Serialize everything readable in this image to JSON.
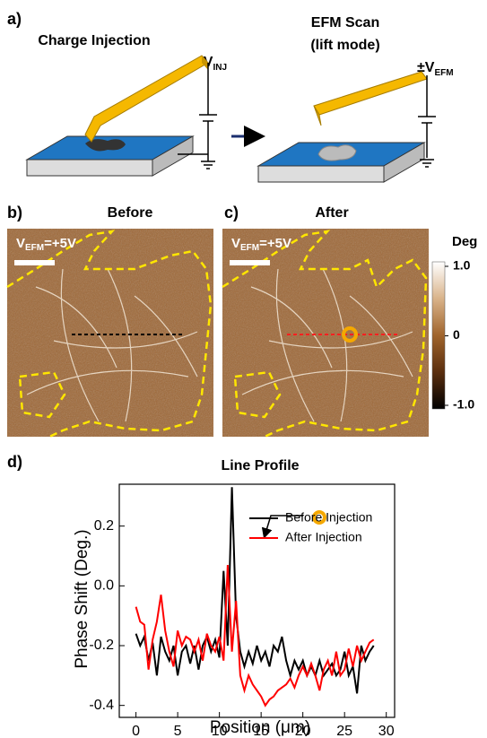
{
  "panel_a": {
    "label": "a)",
    "left_title": "Charge Injection",
    "right_title_1": "EFM Scan",
    "right_title_2": "(lift mode)",
    "left_voltage": "±V",
    "left_voltage_sub": "INJ",
    "right_voltage": "±V",
    "right_voltage_sub": "EFM"
  },
  "panel_b": {
    "label": "b)",
    "title": "Before",
    "voltage": "V",
    "voltage_sub": "EFM",
    "voltage_value": "=+5V"
  },
  "panel_c": {
    "label": "c)",
    "title": "After",
    "voltage": "V",
    "voltage_sub": "EFM",
    "voltage_value": "=+5V"
  },
  "colorbar": {
    "title": "Deg",
    "lim": [
      -1,
      1
    ],
    "ticks": [
      {
        "value": 1,
        "label": "1.0"
      },
      0,
      {
        "value": -1,
        "label": "-1.0"
      }
    ]
  },
  "panel_d": {
    "label": "d)"
  },
  "chart_data": {
    "type": "line",
    "title": "Line Profile",
    "xlabel": "Position (μm)",
    "ylabel": "Phase Shift (Deg.)",
    "x": [
      0,
      0.5,
      1,
      1.5,
      2,
      2.5,
      3,
      3.5,
      4,
      4.5,
      5,
      5.5,
      6,
      6.5,
      7,
      7.5,
      8,
      8.5,
      9,
      9.5,
      10,
      10.5,
      11,
      11.5,
      12,
      12.5,
      13,
      13.5,
      14,
      14.5,
      15,
      15.5,
      16,
      16.5,
      17,
      17.5,
      18,
      18.5,
      19,
      19.5,
      20,
      20.5,
      21,
      21.5,
      22,
      22.5,
      23,
      23.5,
      24,
      24.5,
      25,
      25.5,
      26,
      26.5,
      27,
      27.5,
      28,
      28.5
    ],
    "series": [
      {
        "name": "Before Injection",
        "color": "#000000",
        "values": [
          -0.16,
          -0.2,
          -0.17,
          -0.25,
          -0.19,
          -0.3,
          -0.17,
          -0.22,
          -0.25,
          -0.2,
          -0.3,
          -0.22,
          -0.2,
          -0.26,
          -0.2,
          -0.28,
          -0.2,
          -0.17,
          -0.22,
          -0.18,
          -0.24,
          0.05,
          -0.2,
          0.33,
          -0.1,
          -0.22,
          -0.27,
          -0.22,
          -0.26,
          -0.2,
          -0.25,
          -0.22,
          -0.27,
          -0.2,
          -0.22,
          -0.17,
          -0.25,
          -0.3,
          -0.25,
          -0.28,
          -0.25,
          -0.3,
          -0.27,
          -0.3,
          -0.25,
          -0.3,
          -0.28,
          -0.26,
          -0.3,
          -0.28,
          -0.22,
          -0.3,
          -0.27,
          -0.36,
          -0.2,
          -0.25,
          -0.22,
          -0.2
        ]
      },
      {
        "name": "After Injection",
        "color": "#ff0000",
        "values": [
          -0.07,
          -0.12,
          -0.13,
          -0.28,
          -0.18,
          -0.12,
          -0.03,
          -0.15,
          -0.22,
          -0.27,
          -0.15,
          -0.2,
          -0.17,
          -0.18,
          -0.22,
          -0.18,
          -0.25,
          -0.16,
          -0.2,
          -0.22,
          -0.17,
          -0.25,
          0.07,
          -0.22,
          -0.05,
          -0.3,
          -0.35,
          -0.3,
          -0.33,
          -0.35,
          -0.37,
          -0.4,
          -0.38,
          -0.37,
          -0.35,
          -0.34,
          -0.33,
          -0.31,
          -0.34,
          -0.3,
          -0.27,
          -0.3,
          -0.26,
          -0.3,
          -0.35,
          -0.28,
          -0.25,
          -0.3,
          -0.22,
          -0.3,
          -0.28,
          -0.21,
          -0.27,
          -0.2,
          -0.25,
          -0.22,
          -0.19,
          -0.18
        ]
      }
    ],
    "xlim": [
      -2,
      31
    ],
    "ylim": [
      -0.44,
      0.34
    ],
    "xticks": [
      0,
      5,
      10,
      15,
      20,
      25,
      30
    ],
    "yticks": [
      -0.4,
      -0.2,
      {
        "value": 0,
        "label": "0.0"
      },
      0.2
    ]
  }
}
